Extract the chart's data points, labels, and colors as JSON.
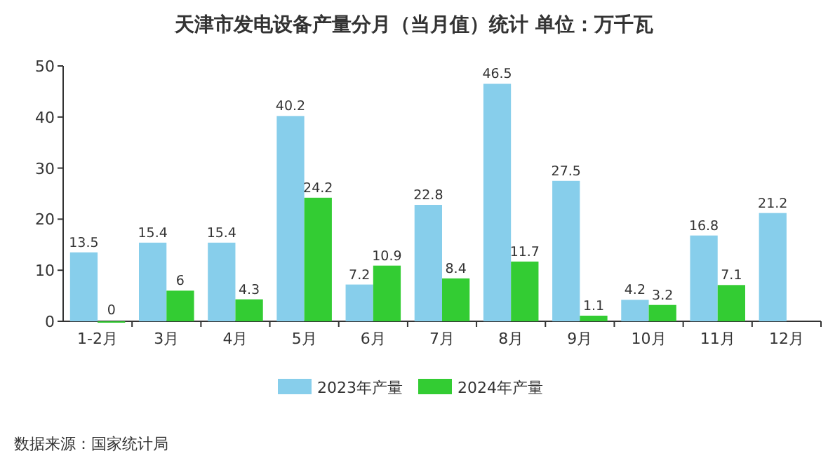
{
  "chart_data": {
    "type": "bar",
    "title": "天津市发电设备产量分月（当月值）统计  单位：万千瓦",
    "categories": [
      "1-2月",
      "3月",
      "4月",
      "5月",
      "6月",
      "7月",
      "8月",
      "9月",
      "10月",
      "11月",
      "12月"
    ],
    "series": [
      {
        "name": "2023年产量",
        "color": "#87ceeb",
        "values": [
          13.5,
          15.4,
          15.4,
          40.2,
          7.2,
          22.8,
          46.5,
          27.5,
          4.2,
          16.8,
          21.2
        ]
      },
      {
        "name": "2024年产量",
        "color": "#33cc33",
        "values": [
          0,
          6,
          4.3,
          24.2,
          10.9,
          8.4,
          11.7,
          1.1,
          3.2,
          7.1,
          null
        ]
      }
    ],
    "ylim": [
      0,
      50
    ],
    "yticks": [
      0,
      10,
      20,
      30,
      40,
      50
    ],
    "data_labels": true,
    "legend": "bottom",
    "annotations": [
      "数据来源：国家统计局"
    ]
  }
}
